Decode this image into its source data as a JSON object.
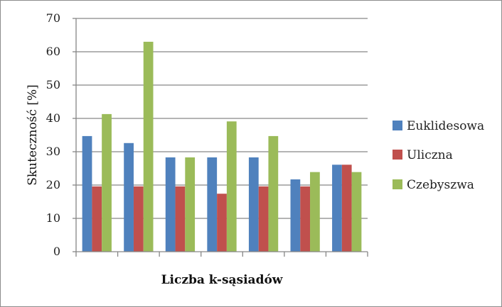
{
  "chart_data": {
    "type": "bar",
    "categories": [
      "",
      "",
      "",
      "",
      "",
      "",
      ""
    ],
    "series": [
      {
        "name": "Euklidesowa",
        "color": "#4F81BD",
        "values": [
          34.7,
          32.6,
          28.3,
          28.3,
          28.3,
          21.7,
          26.1
        ]
      },
      {
        "name": "Uliczna",
        "color": "#C0504D",
        "values": [
          19.6,
          19.6,
          19.6,
          17.4,
          19.6,
          19.6,
          26.1
        ]
      },
      {
        "name": "Czebyszwa",
        "color": "#9BBB59",
        "values": [
          41.3,
          63.0,
          28.3,
          39.1,
          34.7,
          23.9,
          23.9
        ]
      }
    ],
    "xlabel": "Liczba k-sąsiadów",
    "ylabel": "Skuteczność [%]",
    "ylim": [
      0,
      70
    ],
    "yticks": [
      "0",
      "10",
      "20",
      "30",
      "40",
      "50",
      "60",
      "70"
    ],
    "grid": true,
    "legend": "right"
  }
}
